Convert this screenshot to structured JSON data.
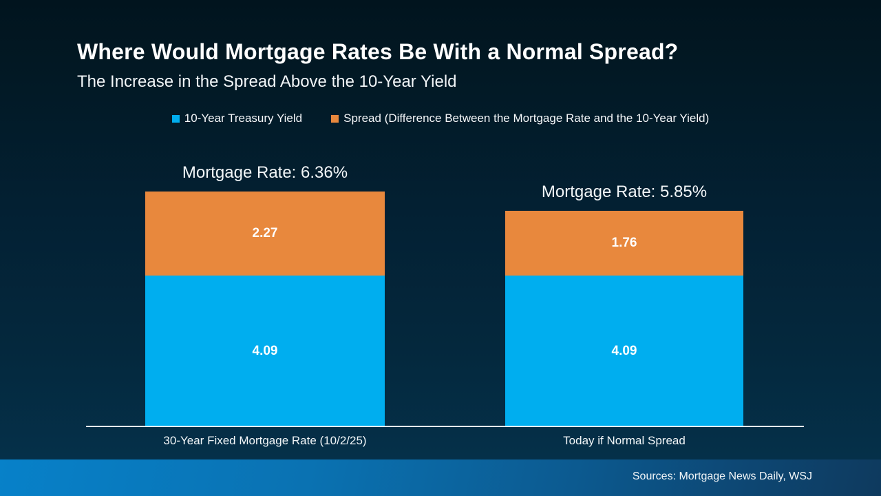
{
  "page": {
    "title": "Where Would Mortgage Rates Be With a Normal Spread?",
    "subtitle": "The Increase in the Spread Above the 10-Year Yield",
    "source_note": "Sources: Mortgage News Daily, WSJ"
  },
  "legend": {
    "items": [
      {
        "label": "10-Year Treasury Yield",
        "color": "#00aeef"
      },
      {
        "label": "Spread (Difference Between the Mortgage Rate and the 10-Year Yield)",
        "color": "#e8883d"
      }
    ]
  },
  "chart_data": {
    "type": "bar",
    "subtype": "stacked",
    "title": "Where Would Mortgage Rates Be With a Normal Spread?",
    "subtitle": "The Increase in the Spread Above the 10-Year Yield",
    "categories": [
      "30-Year Fixed Mortgage Rate (10/2/25)",
      "Today if Normal Spread"
    ],
    "series": [
      {
        "name": "10-Year Treasury Yield",
        "color": "#00aeef",
        "values": [
          4.09,
          4.09
        ]
      },
      {
        "name": "Spread (Difference Between the Mortgage Rate and the 10-Year Yield)",
        "color": "#e8883d",
        "values": [
          2.27,
          1.76
        ]
      }
    ],
    "totals": [
      6.36,
      5.85
    ],
    "totals_labels": [
      "Mortgage Rate: 6.36%",
      "Mortgage Rate: 5.85%"
    ],
    "value_labels": {
      "yield": [
        "4.09",
        "4.09"
      ],
      "spread": [
        "2.27",
        "1.76"
      ]
    },
    "ylim": [
      0,
      6.36
    ],
    "grid": false,
    "legend_position": "top",
    "annotations": [
      "Mortgage Rate: 6.36%",
      "Mortgage Rate: 5.85%"
    ]
  },
  "colors": {
    "background_top": "#01141e",
    "background_bottom": "#053049",
    "bar_blue": "#00aeef",
    "bar_orange": "#e8883d",
    "axis_line": "#eef3f6",
    "footer_left": "#0781c9",
    "footer_right": "#0e3a5e",
    "text": "#ffffff"
  }
}
